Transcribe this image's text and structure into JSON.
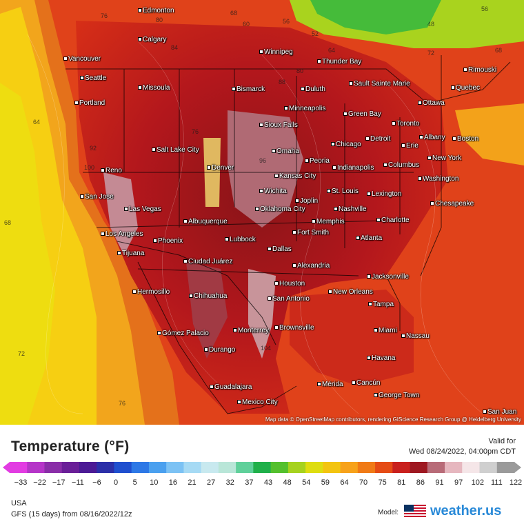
{
  "map": {
    "attribution": "Map data © OpenStreetMap contributors, rendering GIScience Research Group @ Heidelberg University",
    "cities": [
      {
        "name": "Edmonton"
      },
      {
        "name": "Calgary"
      },
      {
        "name": "Vancouver"
      },
      {
        "name": "Seattle"
      },
      {
        "name": "Missoula"
      },
      {
        "name": "Portland"
      },
      {
        "name": "Winnipeg"
      },
      {
        "name": "Thunder Bay"
      },
      {
        "name": "Sault Sainte Marie"
      },
      {
        "name": "Bismarck"
      },
      {
        "name": "Duluth"
      },
      {
        "name": "Rimouski"
      },
      {
        "name": "Quebec"
      },
      {
        "name": "Ottawa"
      },
      {
        "name": "Minneapolis"
      },
      {
        "name": "Green Bay"
      },
      {
        "name": "Sioux Falls"
      },
      {
        "name": "Toronto"
      },
      {
        "name": "Albany"
      },
      {
        "name": "Boston"
      },
      {
        "name": "Detroit"
      },
      {
        "name": "Erie"
      },
      {
        "name": "Salt Lake City"
      },
      {
        "name": "Omaha"
      },
      {
        "name": "Chicago"
      },
      {
        "name": "New York"
      },
      {
        "name": "Denver"
      },
      {
        "name": "Peoria"
      },
      {
        "name": "Indianapolis"
      },
      {
        "name": "Columbus"
      },
      {
        "name": "Reno"
      },
      {
        "name": "Kansas City"
      },
      {
        "name": "Washington"
      },
      {
        "name": "St. Louis"
      },
      {
        "name": "Wichita"
      },
      {
        "name": "Lexington"
      },
      {
        "name": "San Jose"
      },
      {
        "name": "Joplin"
      },
      {
        "name": "Chesapeake"
      },
      {
        "name": "Las Vegas"
      },
      {
        "name": "Oklahoma City"
      },
      {
        "name": "Nashville"
      },
      {
        "name": "Charlotte"
      },
      {
        "name": "Albuquerque"
      },
      {
        "name": "Memphis"
      },
      {
        "name": "Fort Smith"
      },
      {
        "name": "Los Angeles"
      },
      {
        "name": "Phoenix"
      },
      {
        "name": "Lubbock"
      },
      {
        "name": "Atlanta"
      },
      {
        "name": "Tijuana"
      },
      {
        "name": "Dallas"
      },
      {
        "name": "Ciudad Juárez"
      },
      {
        "name": "Alexandria"
      },
      {
        "name": "Jacksonville"
      },
      {
        "name": "Houston"
      },
      {
        "name": "Hermosillo"
      },
      {
        "name": "New Orleans"
      },
      {
        "name": "Chihuahua"
      },
      {
        "name": "San Antonio"
      },
      {
        "name": "Tampa"
      },
      {
        "name": "Brownsville"
      },
      {
        "name": "Miami"
      },
      {
        "name": "Gómez Palacio"
      },
      {
        "name": "Monterrey"
      },
      {
        "name": "Nassau"
      },
      {
        "name": "Durango"
      },
      {
        "name": "Havana"
      },
      {
        "name": "Mérida"
      },
      {
        "name": "Cancún"
      },
      {
        "name": "Guadalajara"
      },
      {
        "name": "George Town"
      },
      {
        "name": "Mexico City"
      },
      {
        "name": "San Juan"
      }
    ],
    "temperature_labels": [
      "76",
      "80",
      "68",
      "56",
      "52",
      "48",
      "56",
      "60",
      "64",
      "68",
      "72",
      "76",
      "80",
      "84",
      "88",
      "92",
      "96",
      "100",
      "104",
      "64",
      "68",
      "72",
      "76"
    ]
  },
  "legend": {
    "title": "Temperature (°F)",
    "valid_label": "Valid for",
    "valid_time": "Wed 08/24/2022, 04:00pm CDT",
    "ticks": [
      "−33",
      "−22",
      "−17",
      "−11",
      "−6",
      "0",
      "5",
      "10",
      "16",
      "21",
      "27",
      "32",
      "37",
      "43",
      "48",
      "54",
      "59",
      "64",
      "70",
      "75",
      "81",
      "86",
      "91",
      "97",
      "102",
      "111",
      "122"
    ],
    "colors": [
      "#e23ce2",
      "#b535c8",
      "#8a2ea8",
      "#6a1f98",
      "#4b1a95",
      "#2b2fa8",
      "#1f4fcf",
      "#2d78e6",
      "#4aa0ef",
      "#7cc2f4",
      "#a6daf4",
      "#c8e9ef",
      "#b9e6d8",
      "#5fd09a",
      "#1fb04a",
      "#54c02d",
      "#a6d21e",
      "#dedd10",
      "#f3c410",
      "#f7a21a",
      "#f07a16",
      "#e54b15",
      "#c9201d",
      "#9e1821",
      "#b86b78",
      "#e6b7bf",
      "#f5e6e8",
      "#cfcfcf",
      "#9a9a9a"
    ]
  },
  "footer": {
    "region": "USA",
    "run": "GFS (15 days) from  08/16/2022/12z",
    "model_label": "Model:",
    "brand": "weather.us"
  }
}
